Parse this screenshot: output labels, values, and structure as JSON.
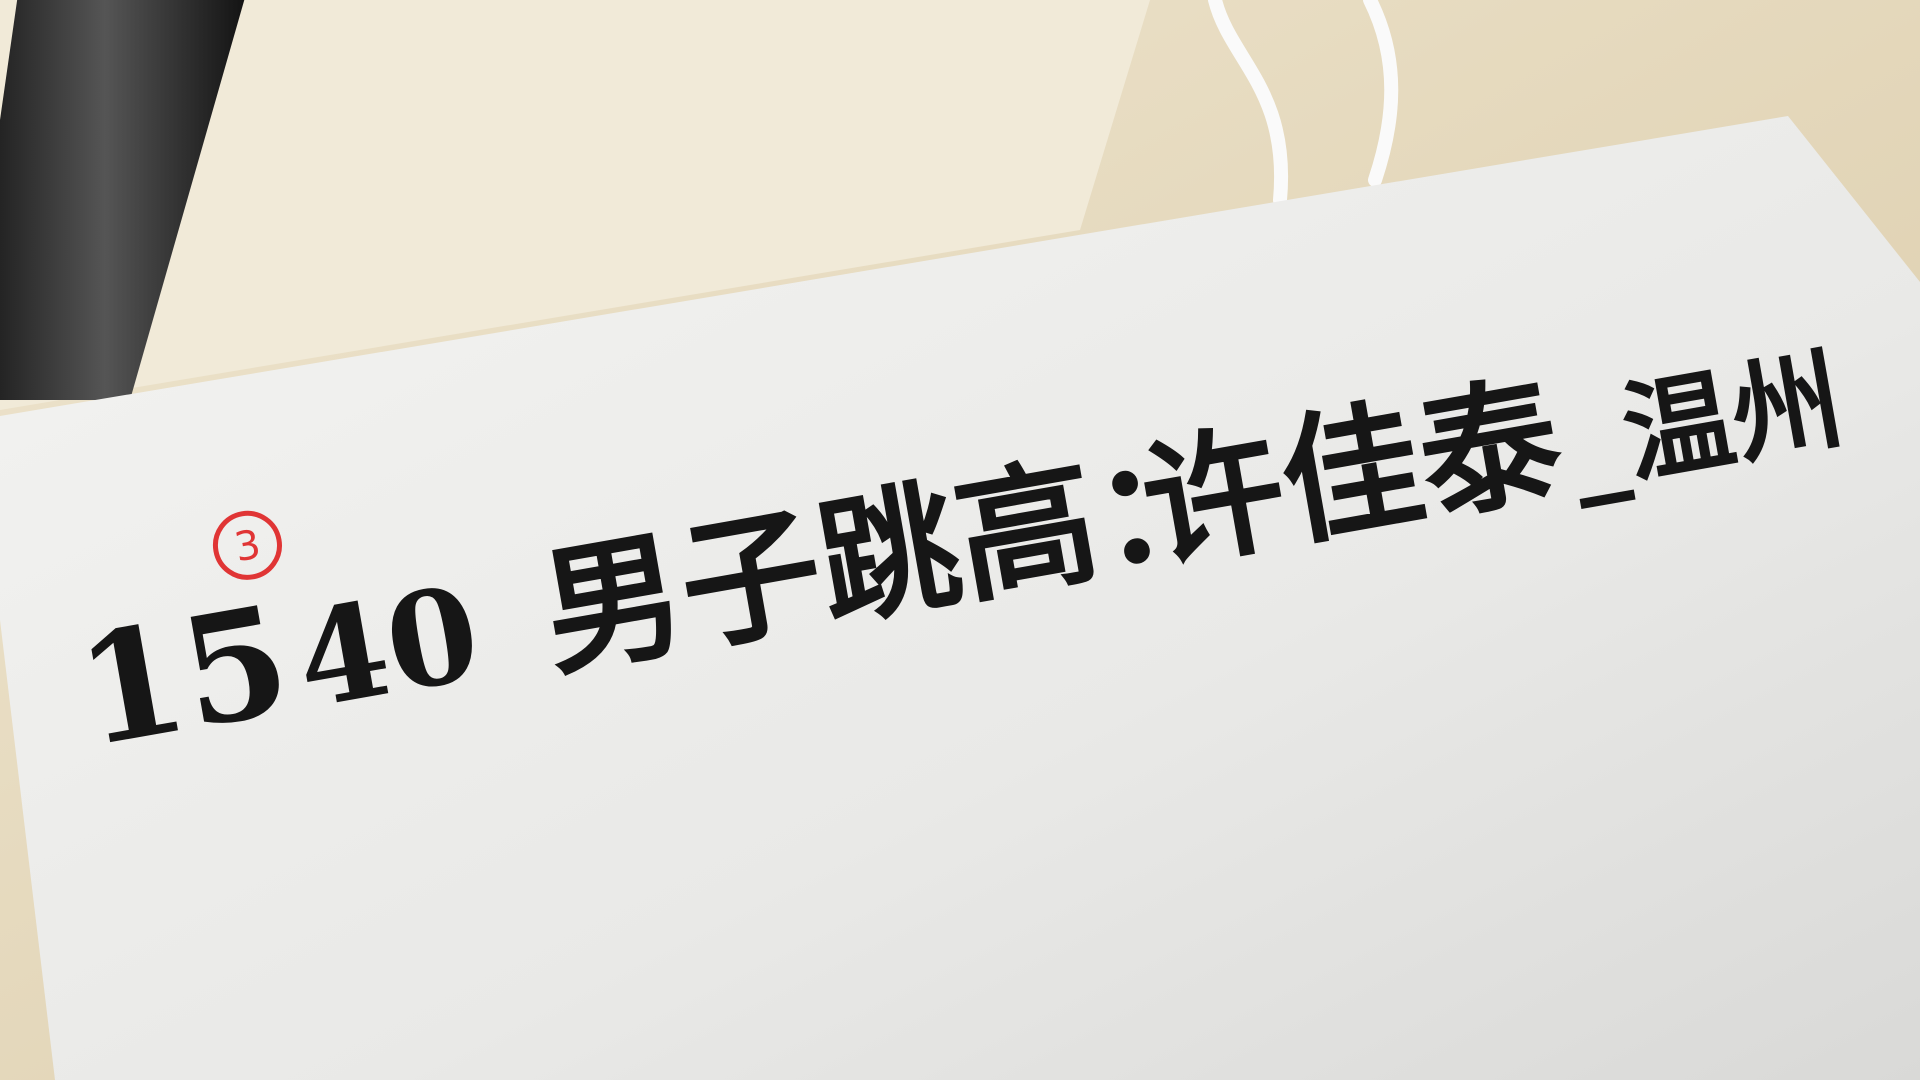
{
  "note": {
    "time_before": "15",
    "circled_mark": "3",
    "time_after": "40",
    "event": "男子跳高：",
    "name": "许佳泰",
    "place": "_温州"
  }
}
